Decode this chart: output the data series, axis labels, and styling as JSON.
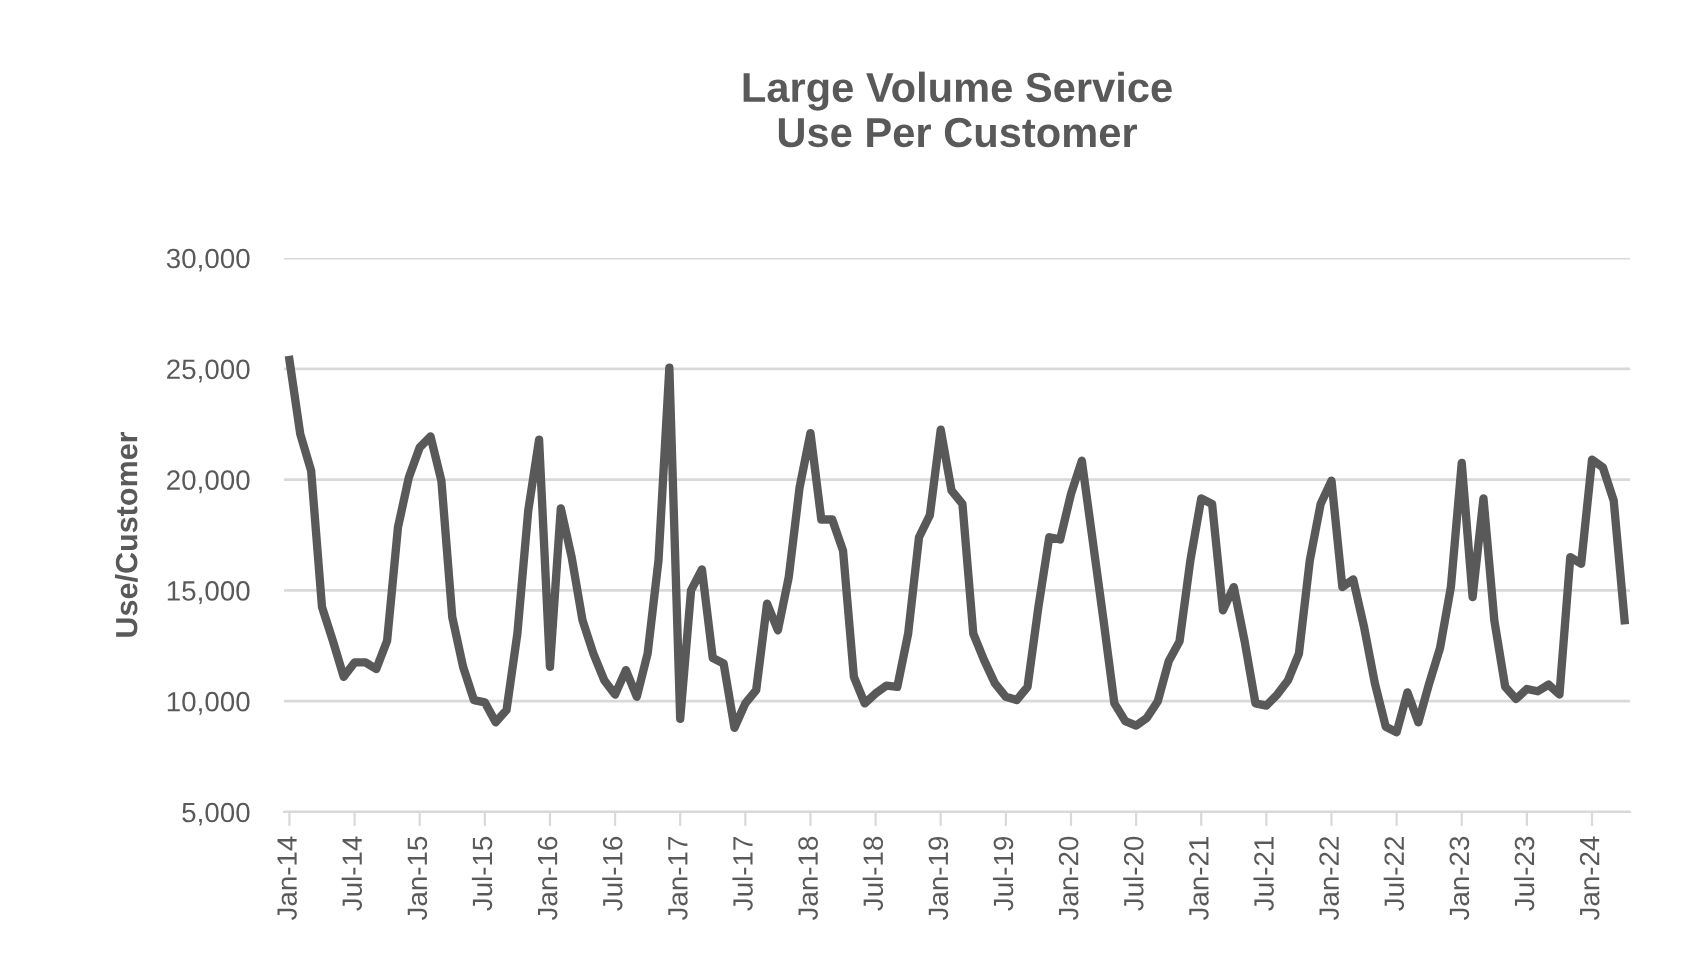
{
  "chart_data": {
    "type": "line",
    "title": "Large Volume Service\nUse Per Customer",
    "ylabel": "Use/Customer",
    "categories": [
      "Jan-14",
      null,
      null,
      null,
      null,
      null,
      "Jul-14",
      null,
      null,
      null,
      null,
      null,
      "Jan-15",
      null,
      null,
      null,
      null,
      null,
      "Jul-15",
      null,
      null,
      null,
      null,
      null,
      "Jan-16",
      null,
      null,
      null,
      null,
      null,
      "Jul-16",
      null,
      null,
      null,
      null,
      null,
      "Jan-17",
      null,
      null,
      null,
      null,
      null,
      "Jul-17",
      null,
      null,
      null,
      null,
      null,
      "Jan-18",
      null,
      null,
      null,
      null,
      null,
      "Jul-18",
      null,
      null,
      null,
      null,
      null,
      "Jan-19",
      null,
      null,
      null,
      null,
      null,
      "Jul-19",
      null,
      null,
      null,
      null,
      null,
      "Jan-20",
      null,
      null,
      null,
      null,
      null,
      "Jul-20",
      null,
      null,
      null,
      null,
      null,
      "Jan-21",
      null,
      null,
      null,
      null,
      null,
      "Jul-21",
      null,
      null,
      null,
      null,
      null,
      "Jan-22",
      null,
      null,
      null,
      null,
      null,
      "Jul-22",
      null,
      null,
      null,
      null,
      null,
      "Jan-23",
      null,
      null,
      null,
      null,
      null,
      "Jul-23",
      null,
      null,
      null,
      null,
      null,
      "Jan-24",
      null,
      null,
      null
    ],
    "series": [
      {
        "color": "#595959",
        "values": [
          25400,
          22050,
          20400,
          14250,
          12730,
          11100,
          11750,
          11750,
          11450,
          12730,
          17850,
          20100,
          21450,
          21950,
          19950,
          13800,
          11550,
          10050,
          9950,
          9050,
          9600,
          13050,
          18600,
          21800,
          11550,
          18700,
          16500,
          13650,
          12150,
          10950,
          10300,
          11400,
          10200,
          12150,
          16350,
          25050,
          9200,
          15000,
          15950,
          11950,
          11700,
          8800,
          9900,
          10500,
          14400,
          13200,
          15600,
          19650,
          22100,
          18200,
          18200,
          16800,
          11100,
          9900,
          10350,
          10700,
          10650,
          13050,
          17400,
          18400,
          22250,
          19500,
          18900,
          13050,
          11850,
          10800,
          10200,
          10050,
          10650,
          14250,
          17400,
          17300,
          19350,
          20850,
          17250,
          13650,
          9900,
          9100,
          8900,
          9250,
          10000,
          11800,
          12700,
          16350,
          19150,
          18900,
          14100,
          15150,
          12700,
          9900,
          9800,
          10300,
          10950,
          12150,
          16350,
          18900,
          19950,
          15150,
          15500,
          13350,
          10800,
          8850,
          8600,
          10400,
          9050,
          10800,
          12400,
          15150,
          20750,
          14700,
          19150,
          13650,
          10650,
          10100,
          10550,
          10450,
          10750,
          10300,
          16500,
          16200,
          20900,
          20550,
          19050,
          13650
        ]
      }
    ],
    "ylim": [
      5000,
      30000
    ],
    "yticks": [
      {
        "value": 5000,
        "label": "5,000"
      },
      {
        "value": 10000,
        "label": "10,000"
      },
      {
        "value": 15000,
        "label": "15,000"
      },
      {
        "value": 20000,
        "label": "20,000"
      },
      {
        "value": 25000,
        "label": "25,000"
      },
      {
        "value": 30000,
        "label": "30,000"
      }
    ],
    "grid": "y",
    "legend": false,
    "marker": "none",
    "line_style": "solid"
  }
}
